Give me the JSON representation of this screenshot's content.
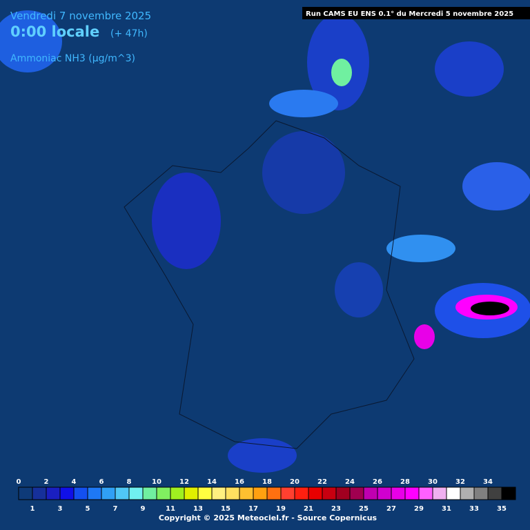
{
  "header": {
    "date": "Vendredi 7 novembre 2025",
    "time": "0:00 locale",
    "offset": "(+ 47h)",
    "variable": "Ammoniac NH3 (µg/m^3)",
    "run": "Run CAMS EU ENS 0.1° du Mercredi 5 novembre 2025"
  },
  "legend": {
    "ticks": [
      0,
      1,
      2,
      3,
      4,
      5,
      6,
      7,
      8,
      9,
      10,
      11,
      12,
      13,
      14,
      15,
      16,
      17,
      18,
      19,
      20,
      21,
      22,
      23,
      24,
      25,
      26,
      27,
      28,
      29,
      30,
      31,
      32,
      33,
      34,
      35
    ],
    "colors": [
      "#0e3a78",
      "#16309a",
      "#1a1fc0",
      "#1010e8",
      "#1450f0",
      "#1e78f5",
      "#30a0f5",
      "#50c8f5",
      "#70f0f0",
      "#70f0a0",
      "#80f060",
      "#a0f020",
      "#e0f000",
      "#ffff40",
      "#fff080",
      "#ffe060",
      "#ffc030",
      "#ffa010",
      "#ff7010",
      "#ff4030",
      "#ff2010",
      "#e80000",
      "#c80010",
      "#a00020",
      "#a00050",
      "#c000b0",
      "#d000d0",
      "#e800e8",
      "#ff00ff",
      "#ff60ff",
      "#f0b0f0",
      "#ffffff",
      "#b0b0b0",
      "#808080",
      "#404040",
      "#000000"
    ]
  },
  "footer": {
    "copyright": "Copyright © 2025 Meteociel.fr - Source Copernicus"
  }
}
